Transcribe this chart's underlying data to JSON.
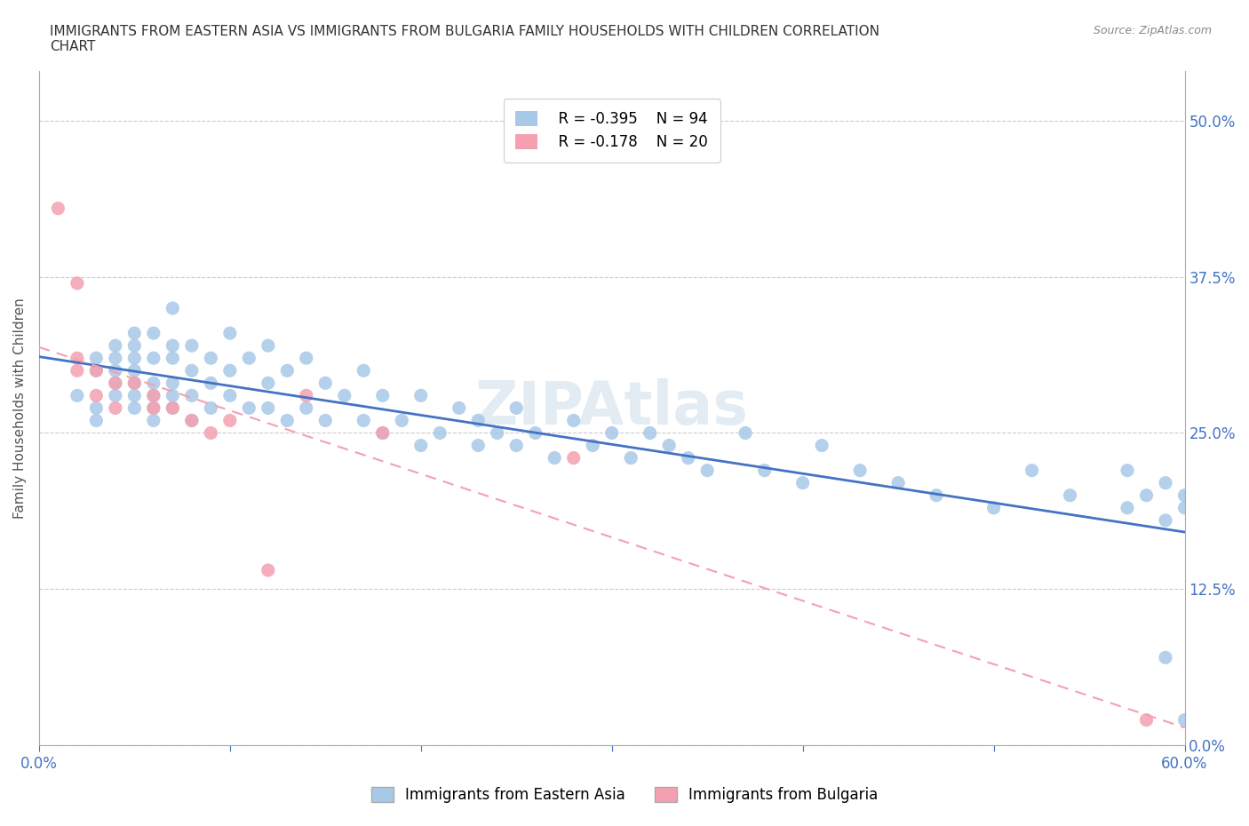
{
  "title": "IMMIGRANTS FROM EASTERN ASIA VS IMMIGRANTS FROM BULGARIA FAMILY HOUSEHOLDS WITH CHILDREN CORRELATION\nCHART",
  "source_text": "Source: ZipAtlas.com",
  "xlabel_text": "",
  "ylabel_text": "Family Households with Children",
  "xlim": [
    0.0,
    0.6
  ],
  "ylim": [
    0.0,
    0.54
  ],
  "yticks": [
    0.0,
    0.125,
    0.25,
    0.375,
    0.5
  ],
  "ytick_labels": [
    "0.0%",
    "12.5%",
    "25.0%",
    "37.5%",
    "50.0%"
  ],
  "xticks": [
    0.0,
    0.1,
    0.2,
    0.3,
    0.4,
    0.5,
    0.6
  ],
  "xtick_labels": [
    "0.0%",
    "",
    "",
    "",
    "",
    "",
    "60.0%"
  ],
  "legend_R_eastern": "R = -0.395",
  "legend_N_eastern": "N = 94",
  "legend_R_bulgaria": "R = -0.178",
  "legend_N_bulgaria": "N = 20",
  "color_eastern": "#a8c8e8",
  "color_bulgaria": "#f4a0b0",
  "trendline_eastern_color": "#4472c4",
  "trendline_bulgaria_color": "#f4a0b0",
  "grid_color": "#cccccc",
  "axis_color": "#aaaaaa",
  "tick_label_color": "#4472c4",
  "watermark_text": "ZIPAtlas",
  "eastern_asia_x": [
    0.02,
    0.03,
    0.03,
    0.03,
    0.03,
    0.04,
    0.04,
    0.04,
    0.04,
    0.04,
    0.05,
    0.05,
    0.05,
    0.05,
    0.05,
    0.05,
    0.05,
    0.06,
    0.06,
    0.06,
    0.06,
    0.06,
    0.06,
    0.07,
    0.07,
    0.07,
    0.07,
    0.07,
    0.07,
    0.08,
    0.08,
    0.08,
    0.08,
    0.09,
    0.09,
    0.09,
    0.1,
    0.1,
    0.1,
    0.11,
    0.11,
    0.12,
    0.12,
    0.12,
    0.13,
    0.13,
    0.14,
    0.14,
    0.15,
    0.15,
    0.16,
    0.17,
    0.17,
    0.18,
    0.18,
    0.19,
    0.2,
    0.2,
    0.21,
    0.22,
    0.23,
    0.23,
    0.24,
    0.25,
    0.25,
    0.26,
    0.27,
    0.28,
    0.29,
    0.3,
    0.31,
    0.32,
    0.33,
    0.34,
    0.35,
    0.37,
    0.38,
    0.4,
    0.41,
    0.43,
    0.45,
    0.47,
    0.5,
    0.52,
    0.54,
    0.57,
    0.57,
    0.58,
    0.59,
    0.59,
    0.59,
    0.6,
    0.6,
    0.6
  ],
  "eastern_asia_y": [
    0.28,
    0.26,
    0.27,
    0.3,
    0.31,
    0.28,
    0.29,
    0.3,
    0.31,
    0.32,
    0.27,
    0.28,
    0.29,
    0.3,
    0.31,
    0.32,
    0.33,
    0.26,
    0.27,
    0.28,
    0.29,
    0.31,
    0.33,
    0.27,
    0.28,
    0.29,
    0.31,
    0.32,
    0.35,
    0.26,
    0.28,
    0.3,
    0.32,
    0.27,
    0.29,
    0.31,
    0.28,
    0.3,
    0.33,
    0.27,
    0.31,
    0.27,
    0.29,
    0.32,
    0.26,
    0.3,
    0.27,
    0.31,
    0.26,
    0.29,
    0.28,
    0.26,
    0.3,
    0.25,
    0.28,
    0.26,
    0.24,
    0.28,
    0.25,
    0.27,
    0.24,
    0.26,
    0.25,
    0.24,
    0.27,
    0.25,
    0.23,
    0.26,
    0.24,
    0.25,
    0.23,
    0.25,
    0.24,
    0.23,
    0.22,
    0.25,
    0.22,
    0.21,
    0.24,
    0.22,
    0.21,
    0.2,
    0.19,
    0.22,
    0.2,
    0.19,
    0.22,
    0.2,
    0.18,
    0.21,
    0.07,
    0.19,
    0.2,
    0.02
  ],
  "bulgaria_x": [
    0.01,
    0.02,
    0.02,
    0.02,
    0.03,
    0.03,
    0.04,
    0.04,
    0.05,
    0.06,
    0.06,
    0.07,
    0.08,
    0.09,
    0.1,
    0.12,
    0.14,
    0.18,
    0.28,
    0.58
  ],
  "bulgaria_y": [
    0.43,
    0.3,
    0.31,
    0.37,
    0.28,
    0.3,
    0.27,
    0.29,
    0.29,
    0.27,
    0.28,
    0.27,
    0.26,
    0.25,
    0.26,
    0.14,
    0.28,
    0.25,
    0.23,
    0.02
  ]
}
